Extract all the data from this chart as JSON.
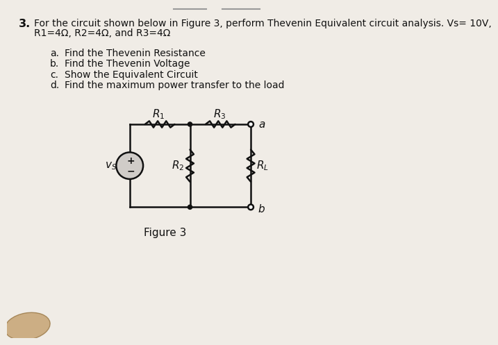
{
  "title_number": "3.",
  "title_text": "For the circuit shown below in Figure 3, perform Thevenin Equivalent circuit analysis. Vs= 10V,",
  "title_text2": "R1=4Ω, R2=4Ω, and R3=4Ω",
  "items": [
    [
      "a.",
      "Find the Thevenin Resistance"
    ],
    [
      "b.",
      "Find the Thevenin Voltage"
    ],
    [
      "c.",
      "Show the Equivalent Circuit"
    ],
    [
      "d.",
      "Find the maximum power transfer to the load"
    ]
  ],
  "figure_label": "Figure 3",
  "bg_color": "#f0ece6",
  "paper_color": "#f7f4f0",
  "text_color": "#111111",
  "circuit_color": "#111111",
  "vs_fill": "#d0ccc8",
  "deco_line_color": "#999999",
  "thumb_color": "#c8a87a"
}
